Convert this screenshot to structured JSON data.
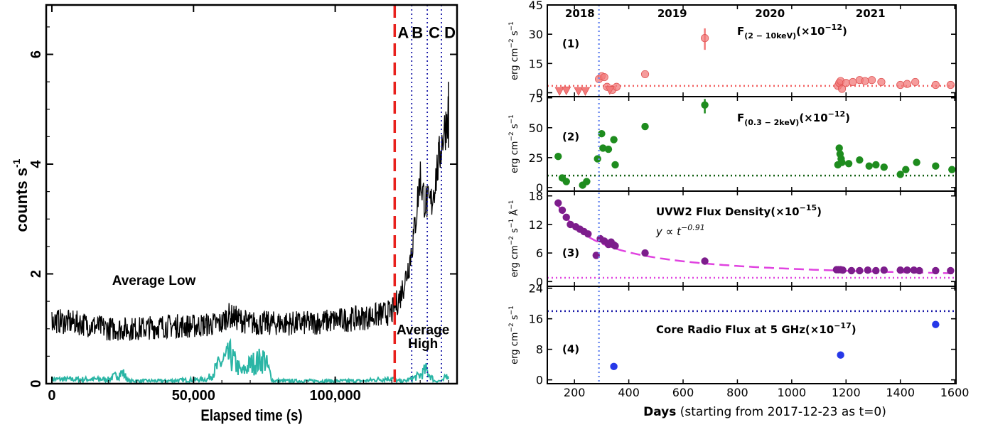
{
  "chart_data": [
    {
      "type": "line",
      "panel": "left",
      "xlabel": "Elapsed time (s)",
      "ylabel": "counts s",
      "ylabel_exp": "-1",
      "xlim": [
        -2000,
        143000
      ],
      "ylim": [
        0,
        6.9
      ],
      "x_ticks": [
        0,
        50000,
        100000
      ],
      "x_tick_labels": [
        "0",
        "50,000",
        "100,000"
      ],
      "y_ticks": [
        0,
        2,
        4,
        6
      ],
      "y_tick_labels": [
        "0",
        "2",
        "4",
        "6"
      ],
      "colors": {
        "source": "#000000",
        "background": "#2ab5a5",
        "flare_line": "#e8201c",
        "segment_lines": "#1a1aa8"
      },
      "series": [
        {
          "role": "source",
          "color": "#000000",
          "x": [
            0,
            10000,
            20000,
            30000,
            40000,
            50000,
            60000,
            62000,
            70000,
            80000,
            90000,
            100000,
            110000,
            115000,
            120000,
            121500,
            123000,
            125000,
            126500,
            128000,
            129000,
            130000,
            130500,
            131500,
            133000,
            134000,
            135000,
            136000,
            137000,
            138000,
            139000,
            140000
          ],
          "y": [
            1.15,
            1.1,
            1.0,
            1.0,
            1.05,
            1.05,
            1.1,
            1.25,
            1.1,
            1.1,
            1.1,
            1.15,
            1.2,
            1.25,
            1.3,
            1.45,
            1.6,
            1.95,
            2.3,
            2.8,
            3.3,
            3.8,
            3.6,
            3.35,
            3.25,
            3.3,
            3.6,
            3.9,
            4.2,
            4.5,
            4.7,
            5.0
          ]
        },
        {
          "role": "background",
          "color": "#2ab5a5",
          "x": [
            0,
            20000,
            25000,
            27000,
            30000,
            40000,
            55000,
            60000,
            63000,
            67000,
            70000,
            75000,
            78000,
            90000,
            110000,
            120000,
            122000,
            125000,
            130000,
            132000,
            135000,
            138000,
            140000
          ],
          "y": [
            0.08,
            0.08,
            0.2,
            0.05,
            0.05,
            0.05,
            0.08,
            0.4,
            0.5,
            0.2,
            0.35,
            0.45,
            0.05,
            0.05,
            0.05,
            0.1,
            0.05,
            0.05,
            0.15,
            0.25,
            0.05,
            0.05,
            0.2
          ]
        }
      ],
      "vlines": [
        {
          "x": 121000,
          "style": "dashed",
          "color": "#e8201c"
        },
        {
          "x": 127000,
          "style": "dotted",
          "color": "#1a1aa8"
        },
        {
          "x": 132500,
          "style": "dotted",
          "color": "#1a1aa8"
        },
        {
          "x": 137500,
          "style": "dotted",
          "color": "#1a1aa8"
        }
      ],
      "annotations": [
        {
          "text": "A",
          "x": 124000,
          "y": 6.3
        },
        {
          "text": "B",
          "x": 129000,
          "y": 6.3
        },
        {
          "text": "C",
          "x": 135000,
          "y": 6.3
        },
        {
          "text": "D",
          "x": 140500,
          "y": 6.3
        },
        {
          "text": "Average Low",
          "x": 36000,
          "y": 1.8
        },
        {
          "text": "Average",
          "x": 131000,
          "y": 0.9
        },
        {
          "text": "High",
          "x": 131000,
          "y": 0.65
        }
      ]
    },
    {
      "type": "scatter",
      "panel": "right-1",
      "label": "(1)",
      "title": "F",
      "title_sub": "(2 − 10keV)",
      "title_suffix": "(×10",
      "title_exp": "−12",
      "title_close": ")",
      "ylabel": "erg cm",
      "ylabel_exp1": "−2",
      "ylabel_mid": " s",
      "ylabel_exp2": "−1",
      "ylim": [
        -2,
        45
      ],
      "y_ticks": [
        0,
        15,
        30,
        45
      ],
      "y_tick_labels": [
        "0",
        "15",
        "30",
        "45"
      ],
      "year_labels": [
        {
          "text": "2018",
          "x": 220
        },
        {
          "text": "2019",
          "x": 560
        },
        {
          "text": "2020",
          "x": 920
        },
        {
          "text": "2021",
          "x": 1290
        }
      ],
      "color": "#f27a7a",
      "hline": {
        "y": 3.5,
        "color": "#f25f5f"
      },
      "points": {
        "x": [
          290,
          300,
          310,
          320,
          340,
          355,
          460,
          680,
          1170,
          1175,
          1180,
          1185,
          1200,
          1225,
          1250,
          1270,
          1295,
          1330,
          1400,
          1425,
          1455,
          1530,
          1585
        ],
        "y": [
          7,
          8.5,
          8,
          3,
          1.5,
          3,
          9.5,
          28,
          3.5,
          5,
          6,
          2,
          5,
          5.5,
          6.5,
          6,
          6.5,
          5.5,
          4,
          4.5,
          5.5,
          4,
          4
        ]
      },
      "upper_limits": {
        "x": [
          145,
          170,
          215,
          240,
          330
        ],
        "y": [
          0.5,
          0.8,
          0.5,
          0.5,
          1.0
        ]
      }
    },
    {
      "type": "scatter",
      "panel": "right-2",
      "label": "(2)",
      "title": "F",
      "title_sub": "(0.3 − 2keV)",
      "title_suffix": "(×10",
      "title_exp": "−12",
      "title_close": ")",
      "ylabel": "erg cm",
      "ylabel_exp1": "−2",
      "ylabel_mid": " s",
      "ylabel_exp2": "−1",
      "ylim": [
        -3,
        76
      ],
      "y_ticks": [
        0,
        25,
        50,
        75
      ],
      "y_tick_labels": [
        "0",
        "25",
        "50",
        "75"
      ],
      "color": "#1e8c1e",
      "hline": {
        "y": 10,
        "color": "#0d5c0d"
      },
      "points": {
        "x": [
          140,
          155,
          170,
          230,
          245,
          285,
          300,
          305,
          325,
          345,
          350,
          460,
          680,
          1170,
          1175,
          1178,
          1182,
          1185,
          1210,
          1250,
          1285,
          1310,
          1340,
          1400,
          1420,
          1460,
          1530,
          1590
        ],
        "y": [
          26,
          8,
          5,
          2,
          5,
          24,
          45,
          33,
          32,
          40,
          19,
          51,
          69,
          19,
          33,
          28,
          24,
          21,
          20,
          23,
          18,
          19,
          17,
          11,
          15,
          21,
          18,
          15
        ]
      }
    },
    {
      "type": "scatter",
      "panel": "right-3",
      "label": "(3)",
      "title": "UVW2 Flux Density(×10",
      "title_exp": "−15",
      "title_close": ")",
      "ylabel": "erg cm",
      "ylabel_exp1": "−2",
      "ylabel_mid": " s",
      "ylabel_exp2": "−1",
      "ylabel_angstrom": " Å",
      "ylabel_exp3": "−1",
      "ylim": [
        -1,
        19
      ],
      "y_ticks": [
        0,
        6,
        12,
        18
      ],
      "y_tick_labels": [
        "0",
        "6",
        "12",
        "18"
      ],
      "color": "#7d1d8c",
      "hline": {
        "y": 0.8,
        "color": "#e043e0"
      },
      "fit": {
        "label": "y ∝ t",
        "label_exp": "−0.91",
        "exponent": -0.91,
        "color": "#e043e0",
        "x_range": [
          140,
          1600
        ],
        "norm_at_x": 140,
        "norm_y": 16
      },
      "points": {
        "x": [
          140,
          155,
          170,
          185,
          205,
          220,
          235,
          250,
          280,
          295,
          310,
          325,
          335,
          345,
          350,
          460,
          680,
          1165,
          1172,
          1180,
          1188,
          1220,
          1250,
          1280,
          1310,
          1340,
          1400,
          1425,
          1450,
          1470,
          1530,
          1585
        ],
        "y": [
          16.5,
          15,
          13.5,
          12,
          11.5,
          11,
          10.5,
          10,
          5.5,
          9,
          8.5,
          7.8,
          8.3,
          7.7,
          7.5,
          6,
          4.3,
          2.5,
          2.5,
          2.5,
          2.4,
          2.3,
          2.3,
          2.4,
          2.3,
          2.4,
          2.4,
          2.4,
          2.4,
          2.3,
          2.3,
          2.3
        ]
      }
    },
    {
      "type": "scatter",
      "panel": "right-4",
      "label": "(4)",
      "title": "Core Radio Flux at 5 GHz(×10",
      "title_exp": "−17",
      "title_close": ")",
      "ylabel": "erg cm",
      "ylabel_exp1": "−2",
      "ylabel_mid": " s",
      "ylabel_exp2": "−1",
      "ylim": [
        -1,
        24.5
      ],
      "y_ticks": [
        0,
        8,
        16,
        24
      ],
      "y_tick_labels": [
        "0",
        "8",
        "16",
        "24"
      ],
      "color": "#2638e8",
      "hline": {
        "y": 18,
        "color": "#1a1aa8"
      },
      "points": {
        "x": [
          345,
          1180,
          1530
        ],
        "y": [
          3.5,
          6.5,
          14.5
        ]
      },
      "xlabel_bold": "Days",
      "xlabel_rest": " (starting from 2017-12-23 as t=0)",
      "xlim": [
        100,
        1605
      ],
      "x_ticks": [
        200,
        400,
        600,
        800,
        1000,
        1200,
        1400,
        1600
      ],
      "x_tick_labels": [
        "200",
        "400",
        "600",
        "800",
        "1000",
        "1200",
        "1400",
        "1600"
      ],
      "vline": {
        "x": 290,
        "color": "#6e8cf0"
      }
    }
  ]
}
